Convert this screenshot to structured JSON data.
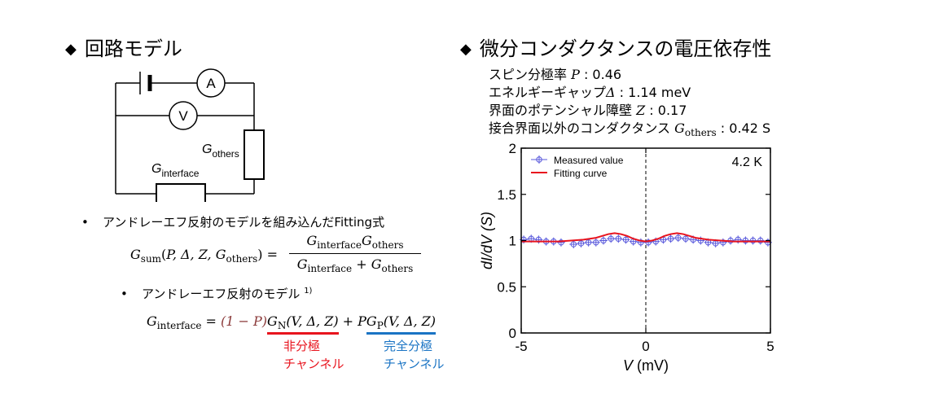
{
  "left": {
    "heading": "回路モデル",
    "bullet1": "アンドレーエフ反射のモデルを組み込んだFitting式",
    "bullet2": "アンドレーエフ反射のモデル",
    "bullet2_ref": "1)",
    "red_label_line1": "非分極",
    "red_label_line2": "チャンネル",
    "blue_label_line1": "完全分極",
    "blue_label_line2": "チャンネル"
  },
  "circuit": {
    "ammeter": "A",
    "voltmeter": "V",
    "g_others_G": "G",
    "g_others_sub": "others",
    "g_interface_G": "G",
    "g_interface_sub": "interface"
  },
  "equations": {
    "gsum_lhs": "(P, Δ, Z, G",
    "gsum_lhs_sub": "sum",
    "gsum_lhs_others": "others",
    "numerator": "G_interface G_others",
    "denominator": "G_interface + G_others",
    "ginterface_lhs_sub": "interface",
    "one_minus_p": "(1 − P)",
    "gn_args": "(V, Δ, Z)",
    "gp_args": "(V, Δ, Z)"
  },
  "right": {
    "heading": "微分コンダクタンスの電圧依存性",
    "params": [
      {
        "label": "スピン分極率 ",
        "symbol": "P",
        "value": " : 0.46"
      },
      {
        "label": "エネルギーギャップ",
        "symbol": "Δ",
        "value": " : 1.14 meV"
      },
      {
        "label": "界面のポテンシャル障壁 ",
        "symbol": "Z",
        "value": " : 0.17"
      },
      {
        "label": "接合界面以外のコンダクタンス ",
        "symbol": "G",
        "sub": "others",
        "value": " : 0.42 S"
      }
    ]
  },
  "chart_data": {
    "type": "scatter",
    "xlabel": "V (mV)",
    "ylabel": "dI/dV (S)",
    "xlim": [
      -5,
      5
    ],
    "ylim": [
      0,
      2
    ],
    "xticks": [
      "-5",
      "0",
      "5"
    ],
    "yticks": [
      "0",
      "0.5",
      "1",
      "1.5",
      "2"
    ],
    "annotation": "4.2 K",
    "legend_position": "top-left",
    "vertical_reference_line": 0,
    "series": [
      {
        "name": "Measured value",
        "style": "crosshair-circle markers",
        "color": "#5a5adc",
        "x": [
          -4.9,
          -4.6,
          -4.3,
          -4.0,
          -3.7,
          -3.4,
          -2.9,
          -2.6,
          -2.3,
          -2.0,
          -1.7,
          -1.4,
          -1.1,
          -0.8,
          -0.5,
          -0.2,
          0.1,
          0.4,
          0.7,
          1.0,
          1.3,
          1.6,
          1.9,
          2.2,
          2.5,
          2.8,
          3.1,
          3.4,
          3.7,
          4.0,
          4.3,
          4.6,
          4.9
        ],
        "y": [
          1.01,
          1.02,
          1.01,
          0.99,
          0.99,
          0.98,
          0.96,
          0.97,
          0.98,
          0.98,
          1.0,
          1.02,
          1.02,
          1.01,
          0.99,
          0.98,
          0.98,
          0.99,
          1.01,
          1.02,
          1.03,
          1.02,
          1.01,
          1.0,
          0.98,
          0.97,
          0.98,
          1.0,
          1.01,
          1.0,
          1.0,
          1.0,
          0.98
        ]
      },
      {
        "name": "Fitting curve",
        "style": "line",
        "color": "#e8141e",
        "x": [
          -5,
          -4.5,
          -4,
          -3.5,
          -3,
          -2.5,
          -2,
          -1.75,
          -1.5,
          -1.25,
          -1,
          -0.75,
          -0.5,
          -0.25,
          0,
          0.25,
          0.5,
          0.75,
          1,
          1.25,
          1.5,
          1.75,
          2,
          2.5,
          3,
          3.5,
          4,
          4.5,
          5
        ],
        "y": [
          0.99,
          0.99,
          0.99,
          0.99,
          1.0,
          1.01,
          1.03,
          1.05,
          1.07,
          1.08,
          1.07,
          1.05,
          1.02,
          1.0,
          0.99,
          1.0,
          1.02,
          1.05,
          1.07,
          1.08,
          1.07,
          1.05,
          1.03,
          1.01,
          1.0,
          0.99,
          0.99,
          0.99,
          0.99
        ]
      }
    ]
  }
}
